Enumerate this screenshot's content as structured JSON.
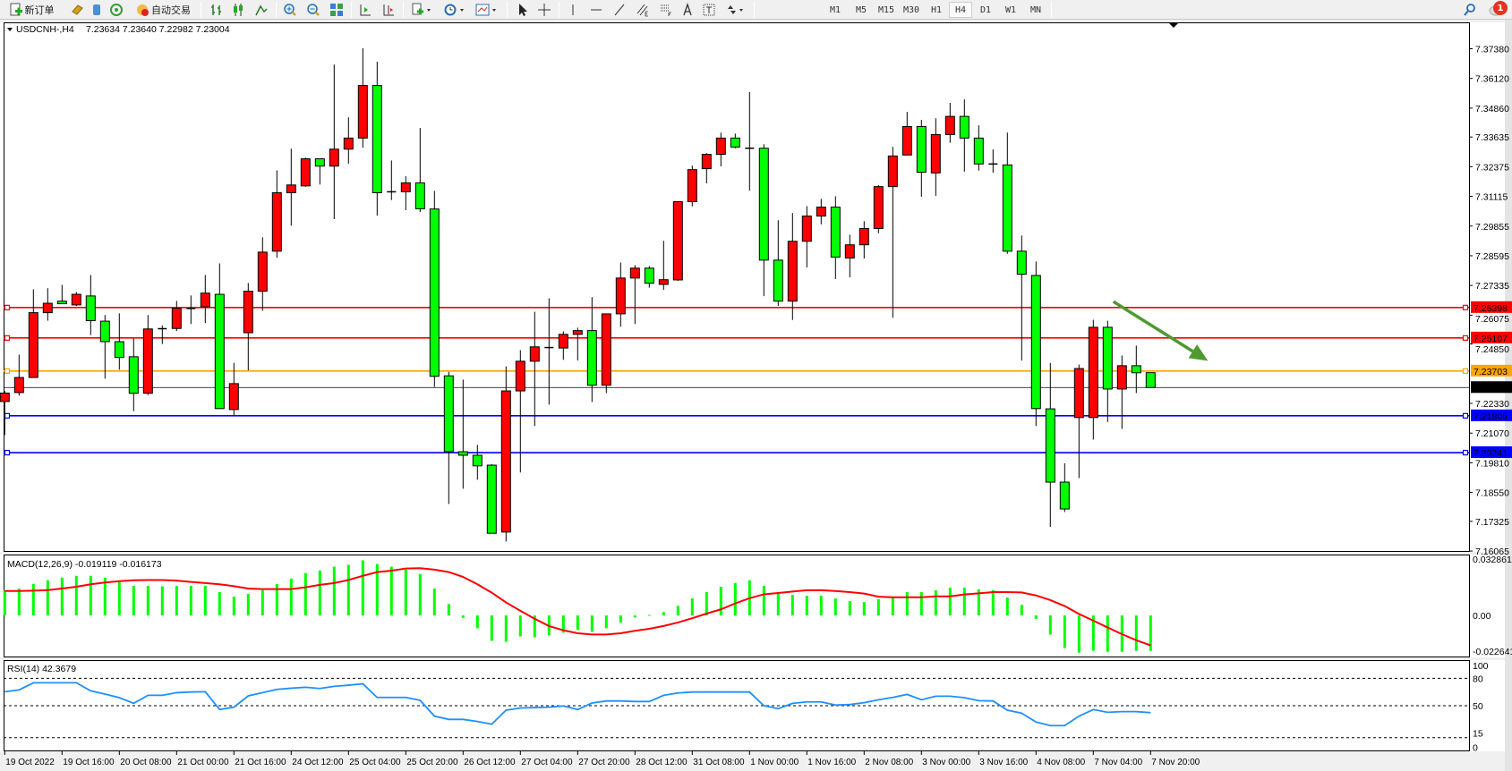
{
  "toolbar": {
    "new_order_label": "新订单",
    "auto_trading_label": "自动交易",
    "timeframes": [
      "M1",
      "M5",
      "M15",
      "M30",
      "H1",
      "H4",
      "D1",
      "W1",
      "MN"
    ],
    "active_timeframe": "H4",
    "notification_count": "1"
  },
  "chart_info": {
    "symbol_label": "USDCNH-,H4",
    "ohlc_label": "7.23634 7.23640 7.22982 7.23004"
  },
  "macd_info": {
    "label": "MACD(12,26,9) -0.019119 -0.016173"
  },
  "rsi_info": {
    "label": "RSI(14) 42.3679"
  },
  "colors": {
    "bull": "#ff0000",
    "bear": "#00ff00",
    "signal": "#ff0000",
    "histogram": "#00ff00",
    "rsi": "#1e90ff",
    "arrow": "#4f9a2f"
  },
  "chart_data": [
    {
      "type": "candlestick",
      "ylim": [
        7.1603,
        7.385
      ],
      "y_ticks": [
        "7.37380",
        "7.36120",
        "7.34860",
        "7.33635",
        "7.32375",
        "7.31115",
        "7.29855",
        "7.28595",
        "7.27335",
        "7.26075",
        "7.24850",
        "7.22330",
        "7.21070",
        "7.19810",
        "7.18550",
        "7.17325",
        "7.16065"
      ],
      "x_tick_labels": [
        {
          "bar": 0,
          "label": "19 Oct 2022"
        },
        {
          "bar": 4,
          "label": "19 Oct 16:00"
        },
        {
          "bar": 8,
          "label": "20 Oct 08:00"
        },
        {
          "bar": 12,
          "label": "21 Oct 00:00"
        },
        {
          "bar": 16,
          "label": "21 Oct 16:00"
        },
        {
          "bar": 20,
          "label": "24 Oct 12:00"
        },
        {
          "bar": 24,
          "label": "25 Oct 04:00"
        },
        {
          "bar": 28,
          "label": "25 Oct 20:00"
        },
        {
          "bar": 32,
          "label": "26 Oct 12:00"
        },
        {
          "bar": 36,
          "label": "27 Oct 04:00"
        },
        {
          "bar": 40,
          "label": "27 Oct 20:00"
        },
        {
          "bar": 44,
          "label": "28 Oct 12:00"
        },
        {
          "bar": 48,
          "label": "31 Oct 08:00"
        },
        {
          "bar": 52,
          "label": "1 Nov 00:00"
        },
        {
          "bar": 56,
          "label": "1 Nov 16:00"
        },
        {
          "bar": 60,
          "label": "2 Nov 08:00"
        },
        {
          "bar": 64,
          "label": "3 Nov 00:00"
        },
        {
          "bar": 68,
          "label": "3 Nov 16:00"
        },
        {
          "bar": 72,
          "label": "4 Nov 08:00"
        },
        {
          "bar": 76,
          "label": "7 Nov 04:00"
        },
        {
          "bar": 80,
          "label": "7 Nov 20:00"
        }
      ],
      "horizontal_lines": [
        {
          "price": 7.26398,
          "label": "7.26398",
          "color": "#ff0000"
        },
        {
          "price": 7.25107,
          "label": "7.25107",
          "color": "#ff0000"
        },
        {
          "price": 7.23703,
          "label": "7.23703",
          "color": "#ffa500"
        },
        {
          "price": 7.21805,
          "label": "7.21805",
          "color": "#0000ff"
        },
        {
          "price": 7.20241,
          "label": "7.20241",
          "color": "#0000ff"
        }
      ],
      "current_price": {
        "price": 7.23004,
        "label": "7.23004"
      },
      "arrow": {
        "from": {
          "bar": 77.4,
          "price": 7.2665
        },
        "to": {
          "bar": 84,
          "price": 7.2414
        },
        "direction": "down"
      },
      "ohlc": [
        [
          7.2241,
          7.2286,
          7.2099,
          7.2277
        ],
        [
          7.2279,
          7.244,
          7.2266,
          7.2343
        ],
        [
          7.2343,
          7.2717,
          7.2343,
          7.2618
        ],
        [
          7.2618,
          7.2722,
          7.2584,
          7.2658
        ],
        [
          7.2667,
          7.2736,
          7.2656,
          7.2656
        ],
        [
          7.2651,
          7.2706,
          7.2646,
          7.2696
        ],
        [
          7.2689,
          7.2778,
          7.2523,
          7.2584
        ],
        [
          7.2582,
          7.2608,
          7.2338,
          7.2495
        ],
        [
          7.2495,
          7.2615,
          7.2376,
          7.2428
        ],
        [
          7.2431,
          7.2509,
          7.22,
          7.2276
        ],
        [
          7.2276,
          7.2608,
          7.2269,
          7.2549
        ],
        [
          7.255,
          7.2564,
          7.2485,
          7.255
        ],
        [
          7.2551,
          7.2668,
          7.254,
          7.2637
        ],
        [
          7.2636,
          7.2691,
          7.257,
          7.2636
        ],
        [
          7.2643,
          7.2778,
          7.2574,
          7.2701
        ],
        [
          7.2696,
          7.2827,
          7.2211,
          7.2211
        ],
        [
          7.2207,
          7.2405,
          7.2183,
          7.2317
        ],
        [
          7.2533,
          7.2744,
          7.2373,
          7.2709
        ],
        [
          7.2709,
          7.2938,
          7.2626,
          7.2875
        ],
        [
          7.2879,
          7.3222,
          7.2851,
          7.3127
        ],
        [
          7.3127,
          7.3314,
          7.2987,
          7.316
        ],
        [
          7.3156,
          7.3276,
          7.3152,
          7.3271
        ],
        [
          7.3271,
          7.3271,
          7.3162,
          7.324
        ],
        [
          7.324,
          7.3671,
          7.3015,
          7.3312
        ],
        [
          7.3312,
          7.3447,
          7.325,
          7.3359
        ],
        [
          7.3359,
          7.374,
          7.3318,
          7.3582
        ],
        [
          7.3582,
          7.3683,
          7.303,
          7.3127
        ],
        [
          7.3131,
          7.3264,
          7.3096,
          7.3131
        ],
        [
          7.3131,
          7.3197,
          7.3053,
          7.3169
        ],
        [
          7.3169,
          7.3402,
          7.3045,
          7.3059
        ],
        [
          7.3058,
          7.3135,
          7.2303,
          7.2348
        ],
        [
          7.235,
          7.2367,
          7.1806,
          7.2028
        ],
        [
          7.2028,
          7.2334,
          7.1871,
          7.2013
        ],
        [
          7.2013,
          7.2057,
          7.1909,
          7.1968
        ],
        [
          7.1971,
          7.1975,
          7.1682,
          7.1682
        ],
        [
          7.1687,
          7.239,
          7.1647,
          7.2286
        ],
        [
          7.2286,
          7.2459,
          7.194,
          7.2412
        ],
        [
          7.2412,
          7.2622,
          7.2137,
          7.2473
        ],
        [
          7.247,
          7.2679,
          7.2228,
          7.247
        ],
        [
          7.2468,
          7.2539,
          7.2418,
          7.2526
        ],
        [
          7.2526,
          7.2554,
          7.2415,
          7.2542
        ],
        [
          7.2542,
          7.2684,
          7.2239,
          7.231
        ],
        [
          7.231,
          7.2613,
          7.2277,
          7.2613
        ],
        [
          7.2613,
          7.2831,
          7.2558,
          7.2765
        ],
        [
          7.2765,
          7.282,
          7.257,
          7.2807
        ],
        [
          7.2807,
          7.2816,
          7.2724,
          7.2743
        ],
        [
          7.2738,
          7.2923,
          7.2715,
          7.2758
        ],
        [
          7.2757,
          7.3089,
          7.2753,
          7.3089
        ],
        [
          7.3089,
          7.3242,
          7.3069,
          7.3225
        ],
        [
          7.3229,
          7.3295,
          7.3167,
          7.329
        ],
        [
          7.329,
          7.3382,
          7.3239,
          7.3359
        ],
        [
          7.3359,
          7.3378,
          7.3315,
          7.3321
        ],
        [
          7.3316,
          7.3554,
          7.3136,
          7.3316
        ],
        [
          7.3316,
          7.3333,
          7.2688,
          7.2841
        ],
        [
          7.2841,
          7.301,
          7.2647,
          7.2667
        ],
        [
          7.2667,
          7.3041,
          7.2587,
          7.2921
        ],
        [
          7.2921,
          7.307,
          7.281,
          7.3028
        ],
        [
          7.3028,
          7.3101,
          7.2993,
          7.3066
        ],
        [
          7.3066,
          7.3112,
          7.2761,
          7.2854
        ],
        [
          7.285,
          7.2949,
          7.2768,
          7.2906
        ],
        [
          7.2906,
          7.3006,
          7.2848,
          7.2975
        ],
        [
          7.2975,
          7.3159,
          7.2955,
          7.3153
        ],
        [
          7.3153,
          7.3322,
          7.2596,
          7.3283
        ],
        [
          7.3287,
          7.347,
          7.3287,
          7.3408
        ],
        [
          7.3408,
          7.3436,
          7.311,
          7.3214
        ],
        [
          7.3211,
          7.3443,
          7.3114,
          7.3374
        ],
        [
          7.3374,
          7.3508,
          7.3339,
          7.3451
        ],
        [
          7.3451,
          7.3523,
          7.3217,
          7.3359
        ],
        [
          7.3359,
          7.3413,
          7.3221,
          7.3249
        ],
        [
          7.3249,
          7.3311,
          7.3212,
          7.3249
        ],
        [
          7.3245,
          7.3382,
          7.2868,
          7.2879
        ],
        [
          7.2879,
          7.2945,
          7.2415,
          7.2781
        ],
        [
          7.2776,
          7.2835,
          7.2137,
          7.2211
        ],
        [
          7.221,
          7.2405,
          7.1709,
          7.1899
        ],
        [
          7.1899,
          7.1979,
          7.1772,
          7.1785
        ],
        [
          7.2173,
          7.2398,
          7.1916,
          7.2381
        ],
        [
          7.2173,
          7.2588,
          7.208,
          7.2556
        ],
        [
          7.2556,
          7.2584,
          7.2154,
          7.2294
        ],
        [
          7.2294,
          7.2436,
          7.2125,
          7.2393
        ],
        [
          7.2393,
          7.2478,
          7.2277,
          7.2363
        ],
        [
          7.23634,
          7.2364,
          7.22982,
          7.23004
        ]
      ]
    },
    {
      "type": "bar+line",
      "ylim": [
        -0.022641,
        0.032861
      ],
      "y_ticks": [
        "0.032861",
        "0.00",
        "-0.022641"
      ],
      "histogram": [
        0.0136,
        0.0145,
        0.017,
        0.019,
        0.0204,
        0.0214,
        0.0214,
        0.0204,
        0.018,
        0.016,
        0.016,
        0.0157,
        0.016,
        0.016,
        0.016,
        0.0126,
        0.0101,
        0.0116,
        0.0136,
        0.017,
        0.0199,
        0.0229,
        0.0243,
        0.0263,
        0.0273,
        0.0297,
        0.0278,
        0.0263,
        0.0248,
        0.0224,
        0.0145,
        0.0062,
        -0.0013,
        -0.0069,
        -0.0137,
        -0.0142,
        -0.0113,
        -0.0118,
        -0.0108,
        -0.0093,
        -0.0078,
        -0.0088,
        -0.0069,
        -0.0039,
        -0.0011,
        0.0003,
        0.0018,
        0.0052,
        0.0092,
        0.0126,
        0.0155,
        0.0175,
        0.019,
        0.016,
        0.0116,
        0.0111,
        0.0106,
        0.0106,
        0.0092,
        0.0077,
        0.0072,
        0.0087,
        0.0096,
        0.0126,
        0.0126,
        0.0136,
        0.015,
        0.015,
        0.0141,
        0.0136,
        0.0096,
        0.0057,
        -0.0018,
        -0.0103,
        -0.0176,
        -0.0201,
        -0.0191,
        -0.0196,
        -0.0196,
        -0.0191,
        -0.019119
      ],
      "signal": [
        0.0132,
        0.0132,
        0.0134,
        0.0137,
        0.0145,
        0.0155,
        0.0168,
        0.0178,
        0.0185,
        0.019,
        0.0191,
        0.0191,
        0.0188,
        0.0181,
        0.0175,
        0.0168,
        0.0158,
        0.0145,
        0.0142,
        0.0142,
        0.0142,
        0.0152,
        0.0165,
        0.0175,
        0.0191,
        0.0214,
        0.0234,
        0.0242,
        0.0253,
        0.0255,
        0.0247,
        0.0234,
        0.0208,
        0.0168,
        0.0123,
        0.007,
        0.0025,
        -0.0018,
        -0.0057,
        -0.008,
        -0.0096,
        -0.0103,
        -0.0103,
        -0.0096,
        -0.0083,
        -0.0072,
        -0.0057,
        -0.0038,
        -0.0015,
        0.001,
        0.0033,
        0.0065,
        0.0093,
        0.0114,
        0.0121,
        0.0129,
        0.0136,
        0.0136,
        0.0132,
        0.0126,
        0.0118,
        0.0101,
        0.0098,
        0.0098,
        0.0098,
        0.0103,
        0.0103,
        0.0113,
        0.0119,
        0.0126,
        0.0126,
        0.0124,
        0.0108,
        0.0083,
        0.0051,
        0.0008,
        -0.0028,
        -0.0065,
        -0.0101,
        -0.0134,
        -0.016173
      ]
    },
    {
      "type": "line",
      "ylim": [
        0,
        100
      ],
      "y_ticks": [
        "100",
        "80",
        "50",
        "15",
        "0"
      ],
      "levels": [
        80,
        50,
        15
      ],
      "values": [
        65.3,
        67.3,
        75.1,
        75.1,
        75.1,
        75.1,
        66.3,
        62.7,
        58.8,
        52.6,
        61.4,
        61.4,
        64.3,
        65.0,
        65.3,
        45.8,
        48.4,
        60.8,
        64.3,
        67.9,
        69.2,
        70.2,
        68.9,
        71.2,
        72.5,
        74.1,
        59.1,
        59.1,
        59.1,
        55.9,
        38.6,
        35.0,
        35.0,
        32.7,
        29.8,
        45.1,
        47.4,
        48.0,
        48.4,
        49.7,
        45.8,
        52.9,
        55.2,
        55.2,
        54.6,
        54.6,
        61.4,
        64.0,
        65.0,
        65.0,
        65.0,
        65.0,
        65.0,
        50.0,
        46.7,
        52.6,
        54.2,
        54.2,
        50.7,
        51.3,
        53.3,
        56.5,
        59.1,
        62.4,
        56.5,
        60.4,
        60.4,
        58.8,
        55.5,
        55.2,
        45.1,
        41.8,
        32.1,
        28.2,
        28.2,
        38.6,
        45.8,
        42.8,
        43.5,
        43.5,
        42.3679
      ]
    }
  ]
}
